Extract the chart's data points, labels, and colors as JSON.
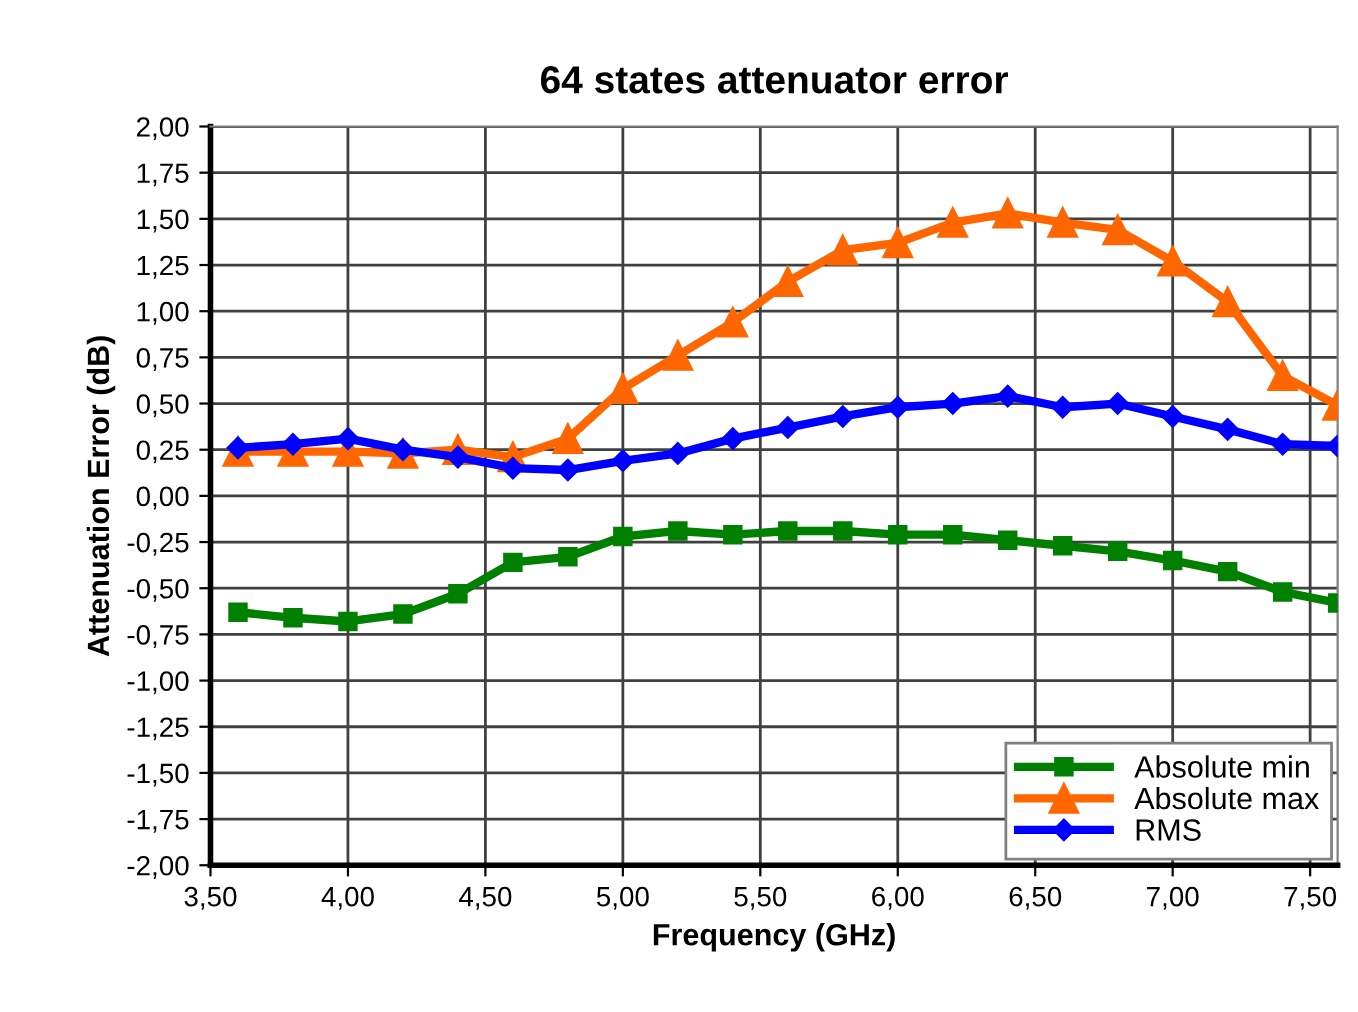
{
  "chart_data": {
    "type": "line",
    "title": "64 states attenuator error",
    "xlabel": "Frequency (GHz)",
    "ylabel": "Attenuation Error (dB)",
    "x": [
      3.6,
      3.8,
      4.0,
      4.2,
      4.4,
      4.6,
      4.8,
      5.0,
      5.2,
      5.4,
      5.6,
      5.8,
      6.0,
      6.2,
      6.4,
      6.6,
      6.8,
      7.0,
      7.2,
      7.4,
      7.6
    ],
    "series": [
      {
        "name": "Absolute min",
        "color": "#008000",
        "marker": "square",
        "values": [
          -0.63,
          -0.66,
          -0.68,
          -0.64,
          -0.53,
          -0.36,
          -0.33,
          -0.22,
          -0.19,
          -0.21,
          -0.19,
          -0.19,
          -0.21,
          -0.21,
          -0.24,
          -0.27,
          -0.3,
          -0.35,
          -0.41,
          -0.52,
          -0.58
        ]
      },
      {
        "name": "Absolute max",
        "color": "#ff6600",
        "marker": "triangle",
        "values": [
          0.24,
          0.24,
          0.24,
          0.23,
          0.25,
          0.21,
          0.31,
          0.58,
          0.76,
          0.94,
          1.16,
          1.33,
          1.37,
          1.48,
          1.53,
          1.48,
          1.44,
          1.27,
          1.05,
          0.65,
          0.49
        ]
      },
      {
        "name": "RMS",
        "color": "#0000ff",
        "marker": "diamond",
        "values": [
          0.26,
          0.28,
          0.31,
          0.25,
          0.21,
          0.15,
          0.14,
          0.19,
          0.23,
          0.31,
          0.37,
          0.43,
          0.48,
          0.5,
          0.54,
          0.48,
          0.5,
          0.43,
          0.36,
          0.28,
          0.27
        ]
      }
    ],
    "xlim": [
      3.5,
      7.6
    ],
    "xticks": [
      {
        "value": 3.5,
        "label": "3,50"
      },
      {
        "value": 4.0,
        "label": "4,00"
      },
      {
        "value": 4.5,
        "label": "4,50"
      },
      {
        "value": 5.0,
        "label": "5,00"
      },
      {
        "value": 5.5,
        "label": "5,50"
      },
      {
        "value": 6.0,
        "label": "6,00"
      },
      {
        "value": 6.5,
        "label": "6,50"
      },
      {
        "value": 7.0,
        "label": "7,00"
      },
      {
        "value": 7.5,
        "label": "7,50"
      }
    ],
    "ylim": [
      -2.0,
      2.0
    ],
    "yticks": [
      {
        "value": -2.0,
        "label": "-2,00"
      },
      {
        "value": -1.75,
        "label": "-1,75"
      },
      {
        "value": -1.5,
        "label": "-1,50"
      },
      {
        "value": -1.25,
        "label": "-1,25"
      },
      {
        "value": -1.0,
        "label": "-1,00"
      },
      {
        "value": -0.75,
        "label": "-0,75"
      },
      {
        "value": -0.5,
        "label": "-0,50"
      },
      {
        "value": -0.25,
        "label": "-0,25"
      },
      {
        "value": 0.0,
        "label": "0,00"
      },
      {
        "value": 0.25,
        "label": "0,25"
      },
      {
        "value": 0.5,
        "label": "0,50"
      },
      {
        "value": 0.75,
        "label": "0,75"
      },
      {
        "value": 1.0,
        "label": "1,00"
      },
      {
        "value": 1.25,
        "label": "1,25"
      },
      {
        "value": 1.5,
        "label": "1,50"
      },
      {
        "value": 1.75,
        "label": "1,75"
      },
      {
        "value": 2.0,
        "label": "2,00"
      }
    ],
    "grid": true,
    "legend": "bottom right",
    "line_style": "solid"
  }
}
